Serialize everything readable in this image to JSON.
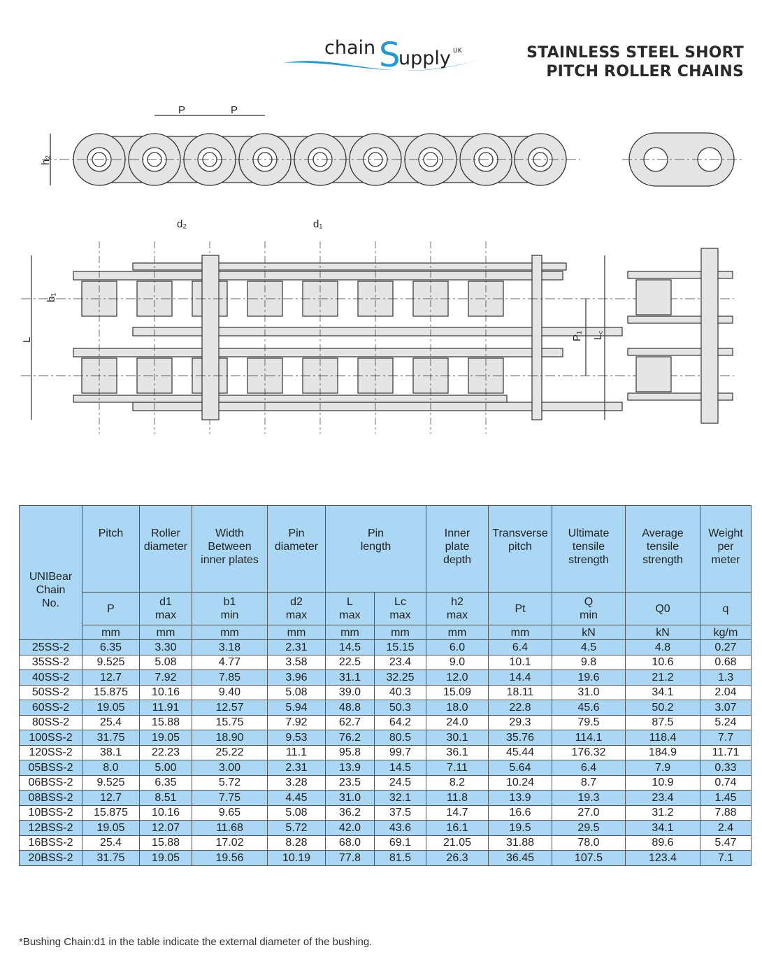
{
  "logo": {
    "text_main": "chain",
    "text_s": "S",
    "text_rest": "upply",
    "text_sup": "UK",
    "color": "#1e9ad6"
  },
  "title": {
    "line1": "STAINLESS STEEL SHORT",
    "line2": "PITCH ROLLER CHAINS"
  },
  "diagram_labels": {
    "pitch": "P",
    "plate_depth": "h₂",
    "pin_dia": "d₂",
    "roller_dia": "d₁",
    "inner_width": "b₁",
    "pin_length": "L",
    "transverse_pitch": "P₁",
    "pin_length_c": "L꜀"
  },
  "table": {
    "header": {
      "chain_no": [
        "UNIBear",
        "Chain",
        "No."
      ],
      "groups": [
        {
          "lines": [
            "Pitch"
          ],
          "symbol": "P",
          "qual": "",
          "unit": "mm"
        },
        {
          "lines": [
            "Roller",
            "diameter"
          ],
          "symbol": "d1",
          "qual": "max",
          "unit": "mm"
        },
        {
          "lines": [
            "Width",
            "Between",
            "inner plates"
          ],
          "symbol": "b1",
          "qual": "min",
          "unit": "mm"
        },
        {
          "lines": [
            "Pin",
            "diameter"
          ],
          "symbol": "d2",
          "qual": "max",
          "unit": "mm"
        },
        {
          "lines": [
            "Pin",
            "length"
          ],
          "span": 2,
          "subs": [
            {
              "symbol": "L",
              "qual": "max",
              "unit": "mm"
            },
            {
              "symbol": "Lc",
              "qual": "max",
              "unit": "mm"
            }
          ]
        },
        {
          "lines": [
            "Inner",
            "plate",
            "depth"
          ],
          "symbol": "h2",
          "qual": "max",
          "unit": "mm"
        },
        {
          "lines": [
            "Transverse",
            "pitch"
          ],
          "symbol": "Pt",
          "qual": "",
          "unit": "mm"
        },
        {
          "lines": [
            "Ultimate",
            "tensile",
            "strength"
          ],
          "symbol": "Q",
          "qual": "min",
          "unit": "kN"
        },
        {
          "lines": [
            "Average",
            "tensile",
            "strength"
          ],
          "symbol": "Q0",
          "qual": "",
          "unit": "kN"
        },
        {
          "lines": [
            "Weight",
            "per",
            "meter"
          ],
          "symbol": "q",
          "qual": "",
          "unit": "kg/m"
        }
      ]
    },
    "rows": [
      [
        "25SS-2",
        "6.35",
        "3.30",
        "3.18",
        "2.31",
        "14.5",
        "15.15",
        "6.0",
        "6.4",
        "4.5",
        "4.8",
        "0.27"
      ],
      [
        "35SS-2",
        "9.525",
        "5.08",
        "4.77",
        "3.58",
        "22.5",
        "23.4",
        "9.0",
        "10.1",
        "9.8",
        "10.6",
        "0.68"
      ],
      [
        "40SS-2",
        "12.7",
        "7.92",
        "7.85",
        "3.96",
        "31.1",
        "32.25",
        "12.0",
        "14.4",
        "19.6",
        "21.2",
        "1.3"
      ],
      [
        "50SS-2",
        "15.875",
        "10.16",
        "9.40",
        "5.08",
        "39.0",
        "40.3",
        "15.09",
        "18.11",
        "31.0",
        "34.1",
        "2.04"
      ],
      [
        "60SS-2",
        "19.05",
        "11.91",
        "12.57",
        "5.94",
        "48.8",
        "50.3",
        "18.0",
        "22.8",
        "45.6",
        "50.2",
        "3.07"
      ],
      [
        "80SS-2",
        "25.4",
        "15.88",
        "15.75",
        "7.92",
        "62.7",
        "64.2",
        "24.0",
        "29.3",
        "79.5",
        "87.5",
        "5.24"
      ],
      [
        "100SS-2",
        "31.75",
        "19.05",
        "18.90",
        "9.53",
        "76.2",
        "80.5",
        "30.1",
        "35.76",
        "114.1",
        "118.4",
        "7.7"
      ],
      [
        "120SS-2",
        "38.1",
        "22.23",
        "25.22",
        "11.1",
        "95.8",
        "99.7",
        "36.1",
        "45.44",
        "176.32",
        "184.9",
        "11.71"
      ],
      [
        "05BSS-2",
        "8.0",
        "5.00",
        "3.00",
        "2.31",
        "13.9",
        "14.5",
        "7.11",
        "5.64",
        "6.4",
        "7.9",
        "0.33"
      ],
      [
        "06BSS-2",
        "9.525",
        "6.35",
        "5.72",
        "3.28",
        "23.5",
        "24.5",
        "8.2",
        "10.24",
        "8.7",
        "10.9",
        "0.74"
      ],
      [
        "08BSS-2",
        "12.7",
        "8.51",
        "7.75",
        "4.45",
        "31.0",
        "32.1",
        "11.8",
        "13.9",
        "19.3",
        "23.4",
        "1.45"
      ],
      [
        "10BSS-2",
        "15.875",
        "10.16",
        "9.65",
        "5.08",
        "36.2",
        "37.5",
        "14.7",
        "16.6",
        "27.0",
        "31.2",
        "7.88"
      ],
      [
        "12BSS-2",
        "19.05",
        "12.07",
        "11.68",
        "5.72",
        "42.0",
        "43.6",
        "16.1",
        "19.5",
        "29.5",
        "34.1",
        "2.4"
      ],
      [
        "16BSS-2",
        "25.4",
        "15.88",
        "17.02",
        "8.28",
        "68.0",
        "69.1",
        "21.05",
        "31.88",
        "78.0",
        "89.6",
        "5.47"
      ],
      [
        "20BSS-2",
        "31.75",
        "19.05",
        "19.56",
        "10.19",
        "77.8",
        "81.5",
        "26.3",
        "36.45",
        "107.5",
        "123.4",
        "7.1"
      ]
    ],
    "stripe_color": "#aad8f4"
  },
  "footnote": "*Bushing Chain:d1 in the table indicate the external diameter of the bushing."
}
